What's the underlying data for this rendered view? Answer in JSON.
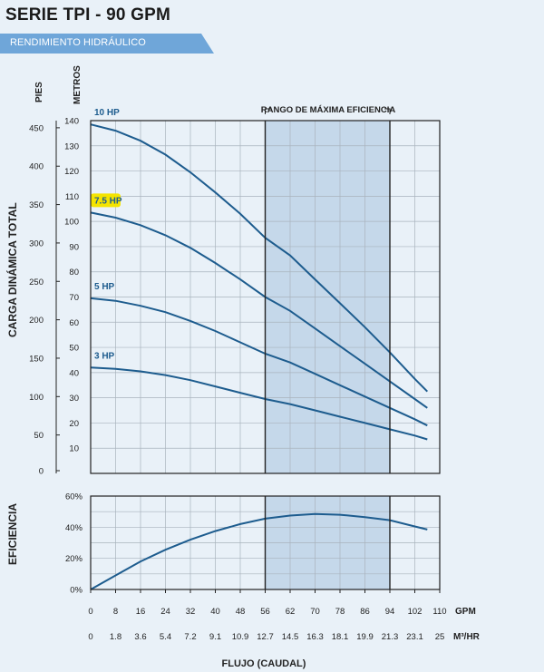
{
  "header": {
    "title": "SERIE TPI - 90 GPM",
    "subtitle": "RENDIMIENTO HIDRÁULICO",
    "banner_color": "#6fa6d9"
  },
  "colors": {
    "curve": "#1d5c8e",
    "band": "#c5d8ea",
    "grid": "#a9b3bd",
    "frame": "#222222",
    "highlight": "#f4e400"
  },
  "chart_data": [
    {
      "type": "line",
      "ylabel": "CARGA DINÁMICA TOTAL",
      "y_unit_left": "PIES",
      "y_unit_right": "METROS",
      "x": {
        "ticks_gpm": [
          "0",
          "8",
          "16",
          "24",
          "32",
          "40",
          "48",
          "56",
          "62",
          "70",
          "78",
          "86",
          "94",
          "102",
          "110"
        ],
        "ticks_m3hr": [
          "0",
          "1.8",
          "3.6",
          "5.4",
          "7.2",
          "9.1",
          "10.9",
          "12.7",
          "14.5",
          "16.3",
          "18.1",
          "19.9",
          "21.3",
          "23.1",
          "25"
        ],
        "unit_gpm": "GPM",
        "unit_m3hr": "M³/HR",
        "label": "FLUJO (CAUDAL)"
      },
      "yticks_pies": [
        "0",
        "50",
        "100",
        "150",
        "200",
        "250",
        "300",
        "350",
        "400",
        "450"
      ],
      "yticks_metros": [
        "10",
        "20",
        "30",
        "40",
        "50",
        "60",
        "70",
        "80",
        "90",
        "100",
        "110",
        "120",
        "130",
        "140"
      ],
      "ylim_metros": [
        0,
        140
      ],
      "band": {
        "label": "RANGO DE MÁXIMA EFICIENCIA",
        "x_from_gpm": 56,
        "x_to_gpm": 94
      },
      "series": [
        {
          "name": "10 HP",
          "highlight": false,
          "points": [
            [
              0,
              138.5
            ],
            [
              8,
              136
            ],
            [
              16,
              132
            ],
            [
              24,
              126.5
            ],
            [
              32,
              119.5
            ],
            [
              40,
              111.5
            ],
            [
              48,
              103
            ],
            [
              56,
              93.5
            ],
            [
              62,
              86.5
            ],
            [
              70,
              77
            ],
            [
              78,
              67.5
            ],
            [
              86,
              58
            ],
            [
              94,
              48
            ],
            [
              102,
              37.5
            ],
            [
              106,
              32.5
            ]
          ]
        },
        {
          "name": "7.5 HP",
          "highlight": true,
          "points": [
            [
              0,
              103.5
            ],
            [
              8,
              101.5
            ],
            [
              16,
              98.5
            ],
            [
              24,
              94.5
            ],
            [
              32,
              89.5
            ],
            [
              40,
              83.5
            ],
            [
              48,
              77
            ],
            [
              56,
              70
            ],
            [
              62,
              64.5
            ],
            [
              70,
              57.5
            ],
            [
              78,
              50.5
            ],
            [
              86,
              43.5
            ],
            [
              94,
              36.5
            ],
            [
              102,
              29.5
            ],
            [
              106,
              26
            ]
          ]
        },
        {
          "name": "5 HP",
          "highlight": false,
          "points": [
            [
              0,
              69.5
            ],
            [
              8,
              68.5
            ],
            [
              16,
              66.5
            ],
            [
              24,
              64
            ],
            [
              32,
              60.5
            ],
            [
              40,
              56.5
            ],
            [
              48,
              52
            ],
            [
              56,
              47.5
            ],
            [
              62,
              44
            ],
            [
              70,
              39.5
            ],
            [
              78,
              35
            ],
            [
              86,
              30.5
            ],
            [
              94,
              26
            ],
            [
              102,
              21.5
            ],
            [
              106,
              19
            ]
          ]
        },
        {
          "name": "3 HP",
          "highlight": false,
          "points": [
            [
              0,
              42
            ],
            [
              8,
              41.5
            ],
            [
              16,
              40.5
            ],
            [
              24,
              39
            ],
            [
              32,
              37
            ],
            [
              40,
              34.5
            ],
            [
              48,
              32
            ],
            [
              56,
              29.5
            ],
            [
              62,
              27.5
            ],
            [
              70,
              25
            ],
            [
              78,
              22.5
            ],
            [
              86,
              20
            ],
            [
              94,
              17.5
            ],
            [
              102,
              15
            ],
            [
              106,
              13.5
            ]
          ]
        }
      ]
    },
    {
      "type": "line",
      "ylabel": "EFICIENCIA",
      "yticks": [
        "0%",
        "20%",
        "40%",
        "60%"
      ],
      "ylim": [
        0,
        60
      ],
      "series": [
        {
          "points": [
            [
              0,
              0
            ],
            [
              8,
              9
            ],
            [
              16,
              18
            ],
            [
              24,
              25.5
            ],
            [
              32,
              32
            ],
            [
              40,
              37.5
            ],
            [
              48,
              42
            ],
            [
              56,
              45.5
            ],
            [
              62,
              47.5
            ],
            [
              70,
              48.5
            ],
            [
              78,
              48
            ],
            [
              86,
              46.5
            ],
            [
              94,
              44.5
            ],
            [
              102,
              40.5
            ],
            [
              106,
              38.5
            ]
          ]
        }
      ]
    }
  ]
}
